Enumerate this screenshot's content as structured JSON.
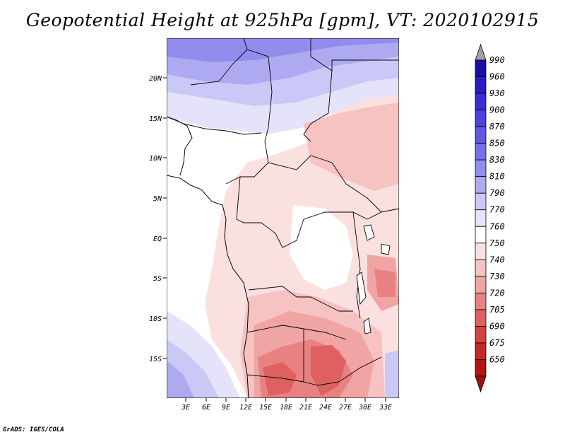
{
  "title": "Geopotential Height at 925hPa [gpm], VT: 2020102915",
  "credit": "GrADS: IGES/COLA",
  "map": {
    "lat_labels": [
      "20N",
      "15N",
      "10N",
      "5N",
      "EQ",
      "5S",
      "10S",
      "15S"
    ],
    "lon_labels": [
      "3E",
      "6E",
      "9E",
      "12E",
      "15E",
      "18E",
      "21E",
      "24E",
      "27E",
      "30E",
      "33E"
    ]
  },
  "colorbar": {
    "labels": [
      "990",
      "960",
      "930",
      "900",
      "870",
      "850",
      "830",
      "810",
      "790",
      "770",
      "760",
      "750",
      "740",
      "730",
      "720",
      "705",
      "690",
      "675",
      "650"
    ],
    "colors": [
      "#1a0ca8",
      "#2a1cc0",
      "#3a2ed0",
      "#4b41dc",
      "#6058e0",
      "#776fe6",
      "#928cec",
      "#aeaaf2",
      "#cac8f6",
      "#e4e3fa",
      "#ffffff",
      "#fbe0e0",
      "#f6c2c2",
      "#f0a4a4",
      "#e88282",
      "#df6060",
      "#d44242",
      "#c42828",
      "#b31414"
    ],
    "over_color": "#a0a0a0",
    "under_color": "#a01010"
  }
}
